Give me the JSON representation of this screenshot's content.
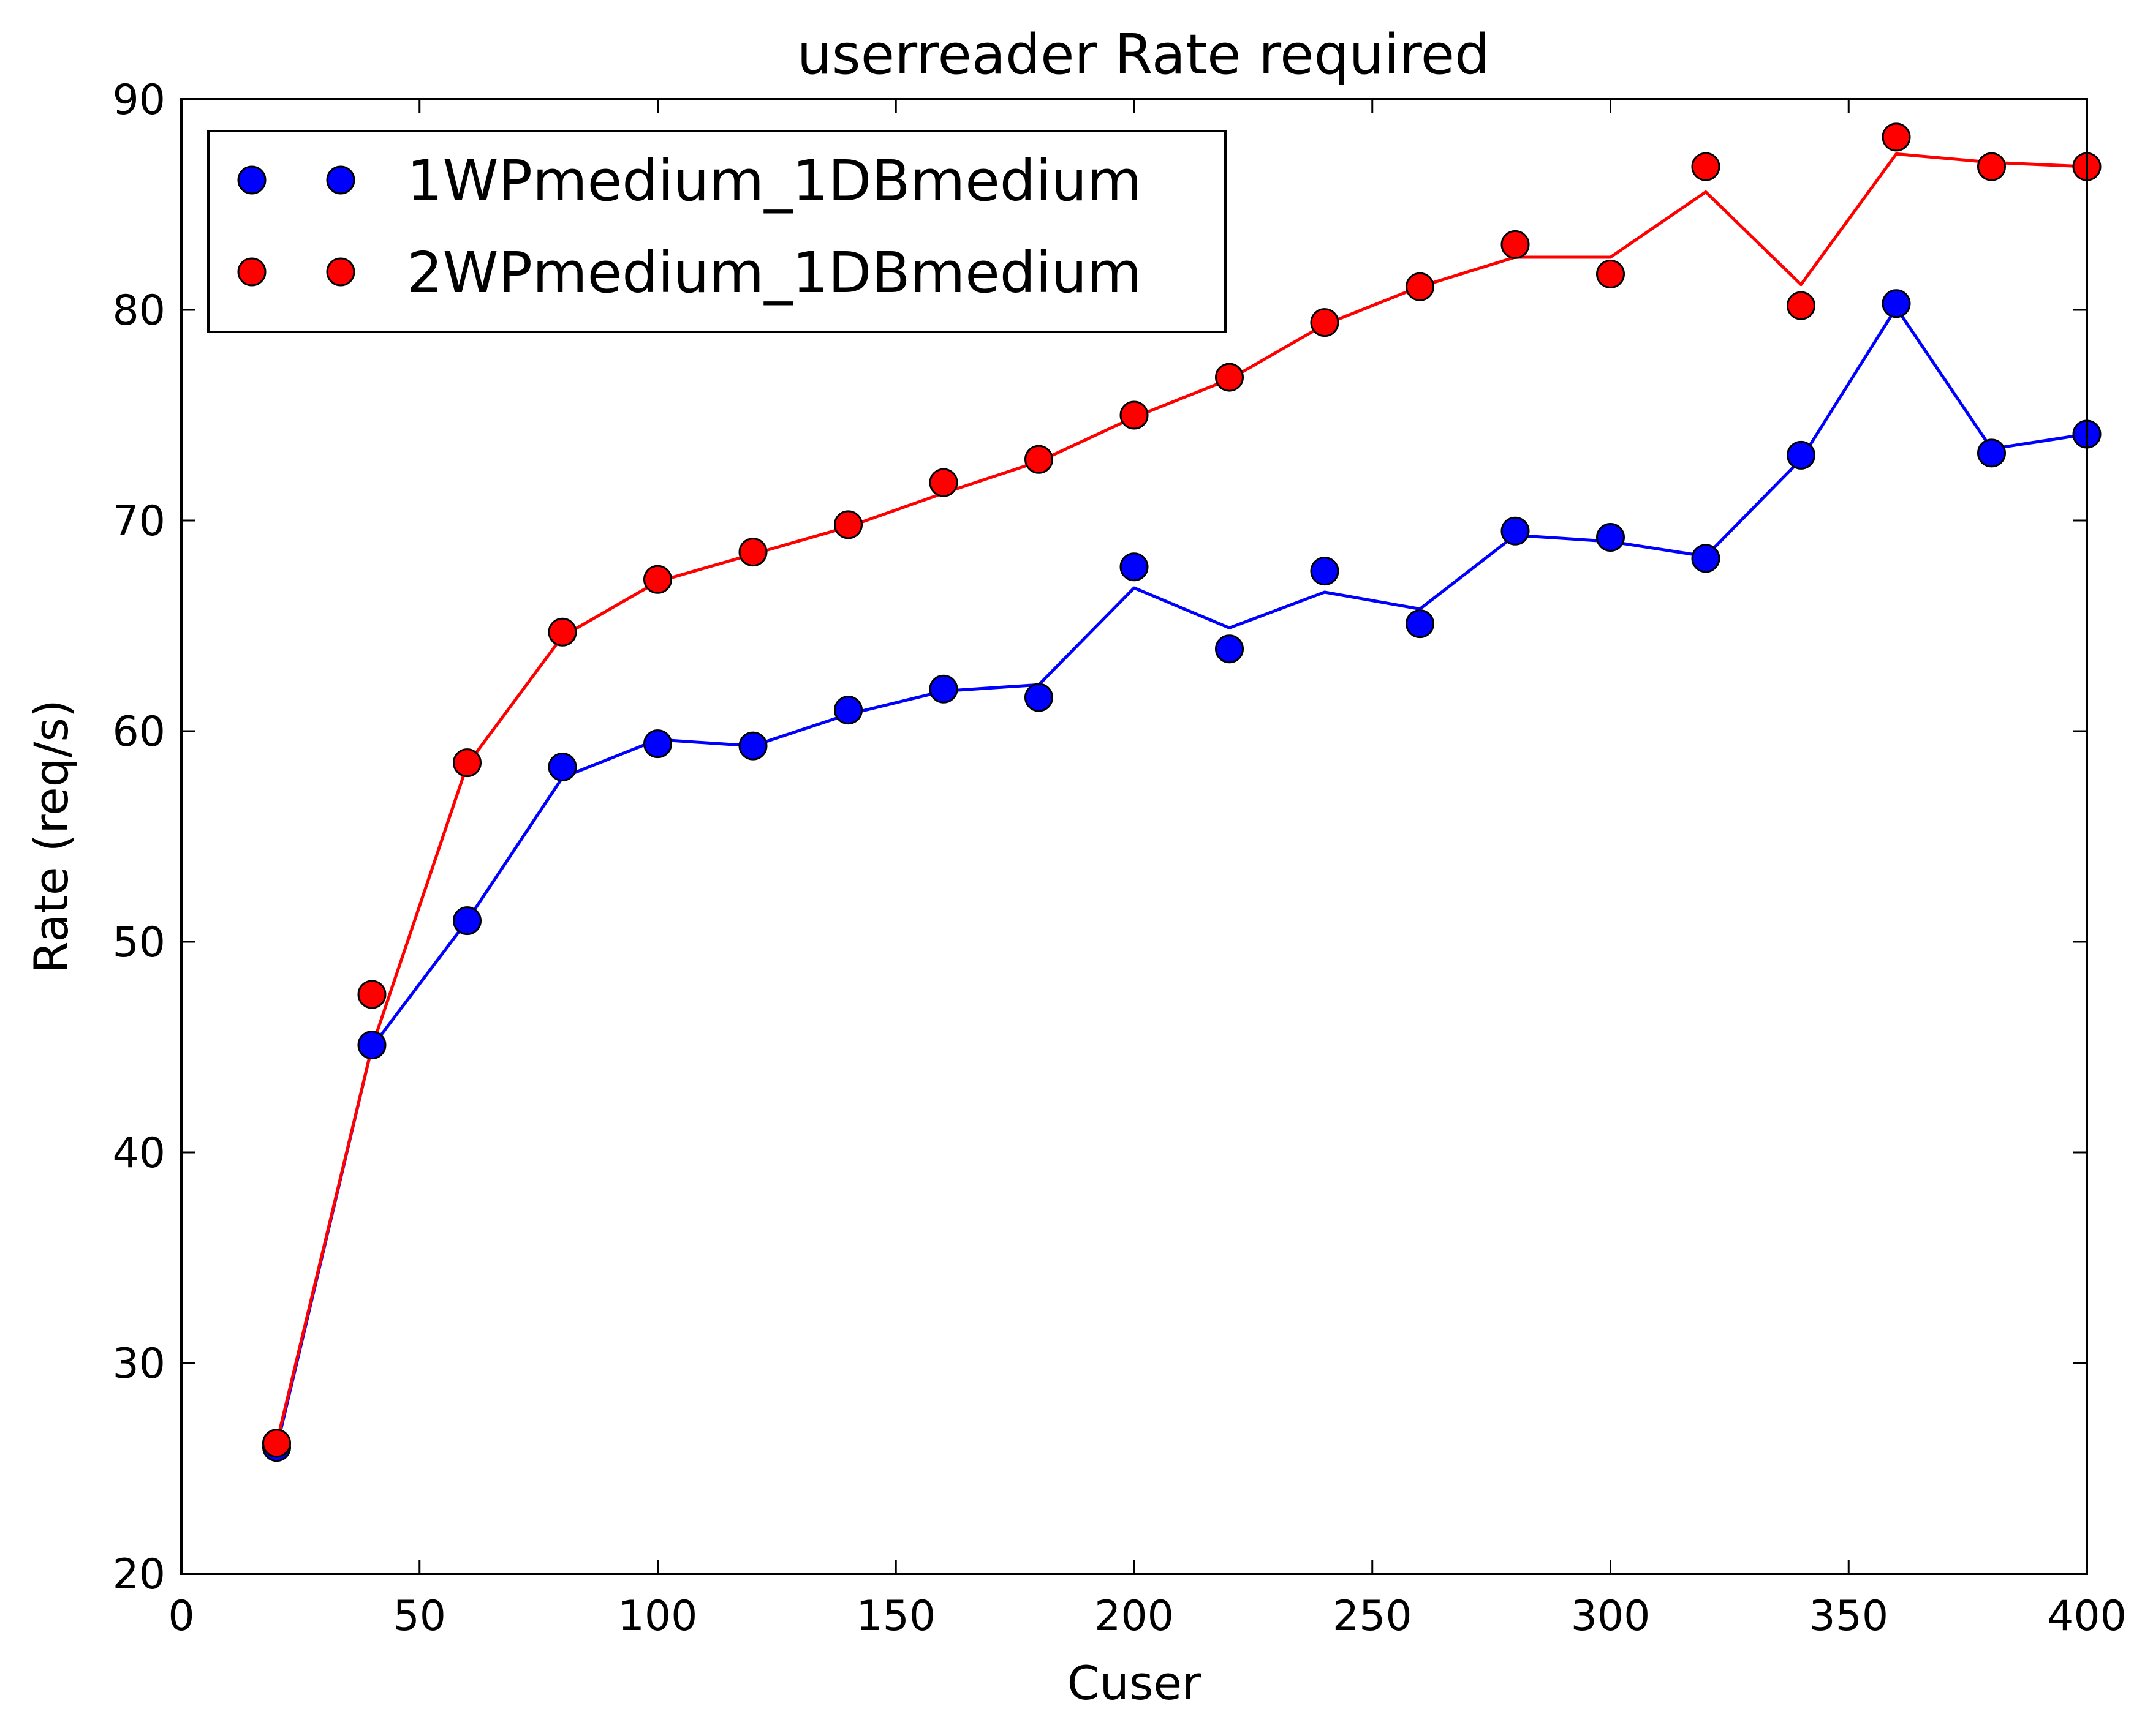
{
  "chart_data": {
    "type": "line",
    "title": "userreader  Rate required",
    "xlabel": "Cuser",
    "ylabel": "Rate (req/s)",
    "xlim": [
      0,
      400
    ],
    "ylim": [
      20,
      90
    ],
    "xticks": [
      0,
      50,
      100,
      150,
      200,
      250,
      300,
      350,
      400
    ],
    "yticks": [
      20,
      30,
      40,
      50,
      60,
      70,
      80,
      90
    ],
    "grid": false,
    "legend_position": "upper-left",
    "series": [
      {
        "name": "1WPmedium_1DBmedium",
        "color": "#0000ff",
        "x": [
          20,
          40,
          60,
          80,
          100,
          120,
          140,
          160,
          180,
          200,
          220,
          240,
          260,
          280,
          300,
          320,
          340,
          360,
          380,
          400
        ],
        "points": [
          26.0,
          45.1,
          51.0,
          58.3,
          59.4,
          59.3,
          61.0,
          62.0,
          61.6,
          67.8,
          63.9,
          67.6,
          65.1,
          69.5,
          69.2,
          68.2,
          73.1,
          80.3,
          73.2,
          74.1
        ],
        "line": [
          26.0,
          45.0,
          51.0,
          57.8,
          59.6,
          59.3,
          60.8,
          61.9,
          62.2,
          66.8,
          64.9,
          66.6,
          65.8,
          69.3,
          69.0,
          68.3,
          72.9,
          80.1,
          73.4,
          74.1
        ]
      },
      {
        "name": "2WPmedium_1DBmedium",
        "color": "#ff0000",
        "x": [
          20,
          40,
          60,
          80,
          100,
          120,
          140,
          160,
          180,
          200,
          220,
          240,
          260,
          280,
          300,
          320,
          340,
          360,
          380,
          400
        ],
        "points": [
          26.2,
          47.5,
          58.5,
          64.7,
          67.2,
          68.5,
          69.8,
          71.8,
          72.9,
          75.0,
          76.8,
          79.4,
          81.1,
          83.1,
          81.7,
          86.8,
          80.2,
          88.2,
          86.8,
          86.8
        ],
        "line": [
          26.2,
          45.0,
          58.4,
          64.5,
          67.1,
          68.4,
          69.7,
          71.3,
          72.8,
          74.9,
          76.7,
          79.3,
          81.1,
          82.5,
          82.5,
          85.6,
          81.2,
          87.4,
          87.0,
          86.8
        ]
      }
    ]
  }
}
